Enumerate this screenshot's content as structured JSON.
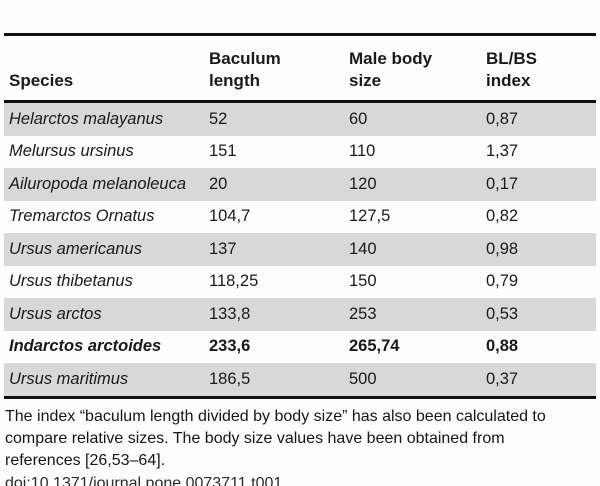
{
  "table": {
    "columns": {
      "species": "Species",
      "baculum_length": "Baculum\nlength",
      "male_body_size": "Male body\nsize",
      "bl_bs_index": "BL/BS\nindex"
    },
    "rows": [
      {
        "species": "Helarctos malayanus",
        "baculum_length": "52",
        "male_body_size": "60",
        "bl_bs_index": "0,87",
        "highlight": false
      },
      {
        "species": "Melursus ursinus",
        "baculum_length": "151",
        "male_body_size": "110",
        "bl_bs_index": "1,37",
        "highlight": false
      },
      {
        "species": "Ailuropoda melanoleuca",
        "baculum_length": "20",
        "male_body_size": "120",
        "bl_bs_index": "0,17",
        "highlight": false
      },
      {
        "species": "Tremarctos Ornatus",
        "baculum_length": "104,7",
        "male_body_size": "127,5",
        "bl_bs_index": "0,82",
        "highlight": false
      },
      {
        "species": "Ursus americanus",
        "baculum_length": "137",
        "male_body_size": "140",
        "bl_bs_index": "0,98",
        "highlight": false
      },
      {
        "species": "Ursus thibetanus",
        "baculum_length": "118,25",
        "male_body_size": "150",
        "bl_bs_index": "0,79",
        "highlight": false
      },
      {
        "species": "Ursus arctos",
        "baculum_length": "133,8",
        "male_body_size": "253",
        "bl_bs_index": "0,53",
        "highlight": false
      },
      {
        "species": "Indarctos arctoides",
        "baculum_length": "233,6",
        "male_body_size": "265,74",
        "bl_bs_index": "0,88",
        "highlight": true
      },
      {
        "species": "Ursus maritimus",
        "baculum_length": "186,5",
        "male_body_size": "500",
        "bl_bs_index": "0,37",
        "highlight": false
      }
    ]
  },
  "footer": {
    "note": "The index “baculum length divided by body size” has also been calculated to\ncompare relative sizes. The body size values have been obtained from\nreferences [26,53–64].",
    "doi": "doi:10.1371/journal.pone.0073711.t001"
  }
}
